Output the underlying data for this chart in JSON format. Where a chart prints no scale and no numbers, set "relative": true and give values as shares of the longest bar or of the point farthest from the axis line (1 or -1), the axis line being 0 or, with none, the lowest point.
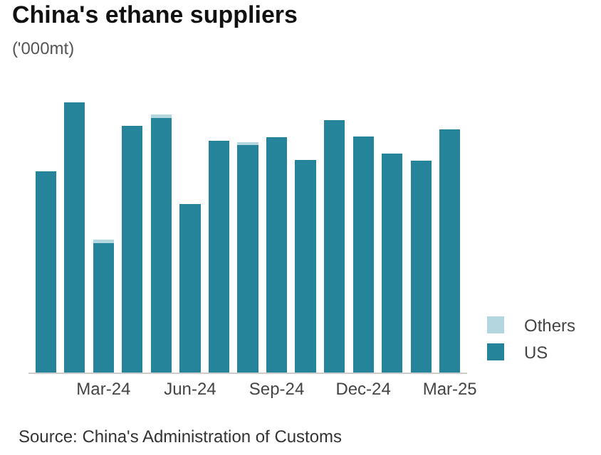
{
  "chart_data": {
    "type": "bar",
    "title": "China's ethane suppliers",
    "subtitle": "('000mt)",
    "stacked": true,
    "relative": true,
    "legend": "bottom right",
    "categories": [
      null,
      null,
      "Mar-24",
      null,
      null,
      "Jun-24",
      null,
      null,
      "Sep-24",
      null,
      null,
      "Dec-24",
      null,
      null,
      "Mar-25"
    ],
    "series": [
      {
        "name": "US",
        "color": "#25839a",
        "values": [
          0.745,
          1,
          0.48,
          0.913,
          0.947,
          0.624,
          0.857,
          0.843,
          0.872,
          0.788,
          0.934,
          0.873,
          0.811,
          0.784,
          0.9
        ]
      },
      {
        "name": "Others",
        "color": "#b3d6df",
        "values": [
          null,
          null,
          0.011,
          null,
          0.009,
          null,
          null,
          0.009,
          null,
          null,
          null,
          null,
          null,
          null,
          null
        ]
      }
    ],
    "annotations": [
      "Source: China's Administration of Customs"
    ]
  }
}
